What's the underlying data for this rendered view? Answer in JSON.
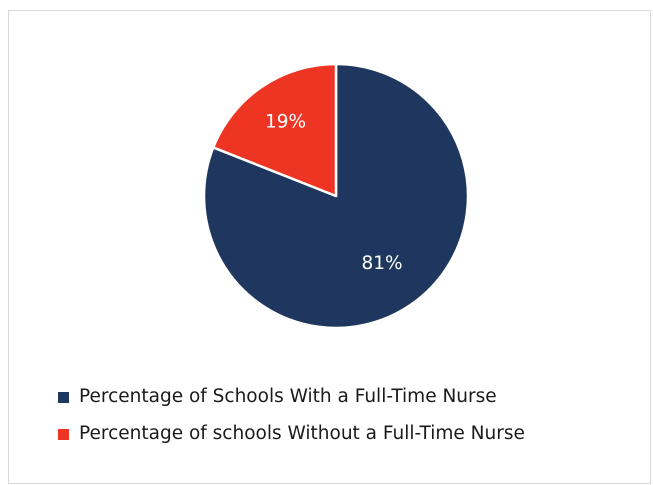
{
  "chart_data": {
    "type": "pie",
    "title": "",
    "series": [
      {
        "name": "Percentage of Schools With a Full-Time Nurse",
        "value": 81,
        "label": "81%",
        "color": "#1f375e"
      },
      {
        "name": "Percentage of schools Without a Full-Time Nurse",
        "value": 19,
        "label": "19%",
        "color": "#ee3524"
      }
    ],
    "legend_position": "bottom-left",
    "data_label_color": "#ffffff"
  }
}
